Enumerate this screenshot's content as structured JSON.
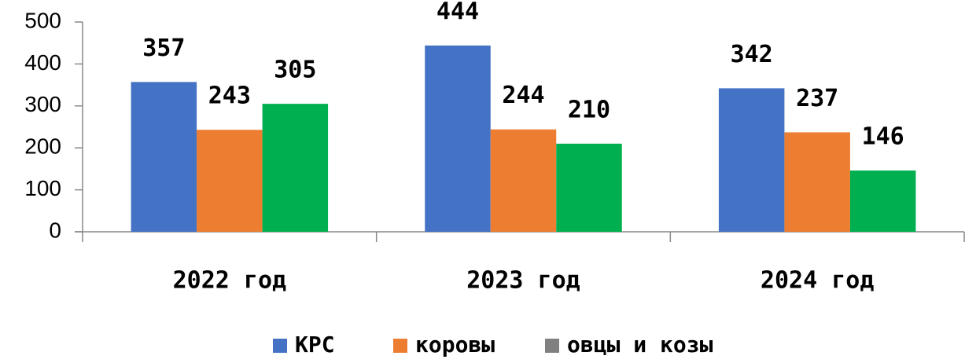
{
  "chart_data": {
    "type": "bar",
    "categories": [
      "2022 год",
      "2023 год",
      "2024 год"
    ],
    "series": [
      {
        "name": "КРС",
        "color": "#4472c4",
        "values": [
          357,
          444,
          342
        ]
      },
      {
        "name": "коровы",
        "color": "#ed7d31",
        "values": [
          243,
          244,
          237
        ]
      },
      {
        "name": "овцы и козы",
        "color": "#00b050",
        "legend_color": "#808080",
        "values": [
          305,
          210,
          146
        ]
      }
    ],
    "ylim": [
      0,
      500
    ],
    "yticks": [
      0,
      100,
      200,
      300,
      400,
      500
    ],
    "grid": false,
    "legend": "bottom"
  }
}
